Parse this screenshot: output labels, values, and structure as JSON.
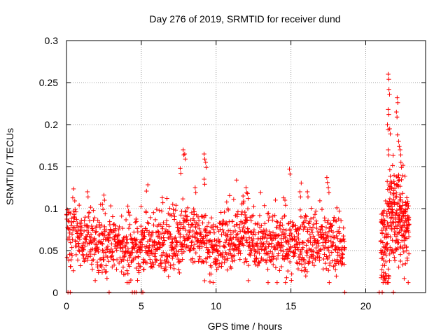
{
  "chart_data": {
    "type": "scatter",
    "title": "Day 276 of 2019, SRMTID for receiver dund",
    "xlabel": "GPS time / hours",
    "ylabel": "SRMTID / TECUs",
    "xlim": [
      0,
      24
    ],
    "ylim": [
      0,
      0.3
    ],
    "x_ticks": [
      0,
      5,
      10,
      15,
      20
    ],
    "y_ticks": [
      0,
      0.05,
      0.1,
      0.15,
      0.2,
      0.25,
      0.3
    ],
    "x_tick_labels": [
      "0",
      "5",
      "10",
      "15",
      "20"
    ],
    "y_tick_labels": [
      "0",
      "0.05",
      "0.1",
      "0.15",
      "0.2",
      "0.25",
      "0.3"
    ],
    "grid": true,
    "marker": "+",
    "series": [
      {
        "name": "SRMTID",
        "color": "#ff0000",
        "segments": [
          {
            "start": 0.0,
            "end": 18.6,
            "base": [
              [
                0,
                0.07
              ],
              [
                2,
                0.06
              ],
              [
                4,
                0.052
              ],
              [
                7,
                0.06
              ],
              [
                8,
                0.07
              ],
              [
                10,
                0.055
              ],
              [
                12,
                0.07
              ],
              [
                14,
                0.055
              ],
              [
                16,
                0.06
              ],
              [
                18.6,
                0.055
              ]
            ],
            "spread": 0.018,
            "count": 1500
          },
          {
            "start": 21.0,
            "end": 22.9,
            "base": [
              [
                21,
                0.05
              ],
              [
                21.4,
                0.07
              ],
              [
                21.8,
                0.09
              ],
              [
                22.3,
                0.09
              ],
              [
                22.9,
                0.08
              ]
            ],
            "spread": 0.03,
            "count": 300
          }
        ],
        "peaks": [
          {
            "x": 1.4,
            "y": 0.12
          },
          {
            "x": 2.4,
            "y": 0.105
          },
          {
            "x": 2.5,
            "y": 0.116
          },
          {
            "x": 4.1,
            "y": 0.103
          },
          {
            "x": 6.4,
            "y": 0.113
          },
          {
            "x": 7.1,
            "y": 0.105
          },
          {
            "x": 7.6,
            "y": 0.148
          },
          {
            "x": 7.8,
            "y": 0.17
          },
          {
            "x": 7.9,
            "y": 0.165
          },
          {
            "x": 8.6,
            "y": 0.125
          },
          {
            "x": 9.2,
            "y": 0.165
          },
          {
            "x": 9.3,
            "y": 0.155
          },
          {
            "x": 9.2,
            "y": 0.135
          },
          {
            "x": 11.8,
            "y": 0.115
          },
          {
            "x": 12.0,
            "y": 0.125
          },
          {
            "x": 12.1,
            "y": 0.118
          },
          {
            "x": 14.6,
            "y": 0.11
          },
          {
            "x": 14.9,
            "y": 0.147
          },
          {
            "x": 15.6,
            "y": 0.12
          },
          {
            "x": 16.1,
            "y": 0.12
          },
          {
            "x": 17.4,
            "y": 0.137
          },
          {
            "x": 17.5,
            "y": 0.125
          },
          {
            "x": 21.5,
            "y": 0.26
          },
          {
            "x": 21.55,
            "y": 0.242
          },
          {
            "x": 21.5,
            "y": 0.218
          },
          {
            "x": 21.45,
            "y": 0.2
          },
          {
            "x": 21.6,
            "y": 0.195
          },
          {
            "x": 21.5,
            "y": 0.17
          },
          {
            "x": 22.1,
            "y": 0.232
          },
          {
            "x": 22.05,
            "y": 0.215
          },
          {
            "x": 22.2,
            "y": 0.18
          },
          {
            "x": 22.3,
            "y": 0.17
          },
          {
            "x": 22.35,
            "y": 0.155
          },
          {
            "x": 22.2,
            "y": 0.14
          },
          {
            "x": 21.7,
            "y": 0.13
          }
        ],
        "zero_points": [
          0.1,
          0.25,
          2.85,
          4.4,
          4.55,
          4.65,
          5.0,
          5.1,
          18.6,
          20.9,
          21.1,
          21.85
        ]
      }
    ]
  }
}
